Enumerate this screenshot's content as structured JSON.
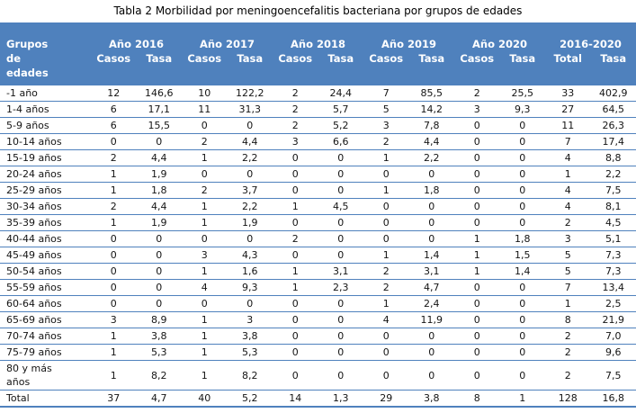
{
  "title": "Tabla 2 Morbilidad por meningoencefalitis bacteriana por grupos de edades",
  "colors": {
    "header_bg": "#4f81bd",
    "header_text": "#ffffff",
    "row_line": "#4f81bd",
    "body_text": "#141414"
  },
  "table": {
    "row_header": "Grupos de edades",
    "year_groups": [
      {
        "label": "Año 2016",
        "cols": [
          "Casos",
          "Tasa"
        ]
      },
      {
        "label": "Año 2017",
        "cols": [
          "Casos",
          "Tasa"
        ]
      },
      {
        "label": "Año 2018",
        "cols": [
          "Casos",
          "Tasa"
        ]
      },
      {
        "label": "Año 2019",
        "cols": [
          "Casos",
          "Tasa"
        ]
      },
      {
        "label": "Año 2020",
        "cols": [
          "Casos",
          "Tasa"
        ]
      },
      {
        "label": "2016-2020",
        "cols": [
          "Total",
          "Tasa"
        ]
      }
    ],
    "rows": [
      {
        "age": "-1 año",
        "values": [
          "12",
          "146,6",
          "10",
          "122,2",
          "2",
          "24,4",
          "7",
          "85,5",
          "2",
          "25,5",
          "33",
          "402,9"
        ]
      },
      {
        "age": "1-4 años",
        "values": [
          "6",
          "17,1",
          "11",
          "31,3",
          "2",
          "5,7",
          "5",
          "14,2",
          "3",
          "9,3",
          "27",
          "64,5"
        ]
      },
      {
        "age": "5-9 años",
        "values": [
          "6",
          "15,5",
          "0",
          "0",
          "2",
          "5,2",
          "3",
          "7,8",
          "0",
          "0",
          "11",
          "26,3"
        ]
      },
      {
        "age": "10-14 años",
        "values": [
          "0",
          "0",
          "2",
          "4,4",
          "3",
          "6,6",
          "2",
          "4,4",
          "0",
          "0",
          "7",
          "17,4"
        ]
      },
      {
        "age": "15-19 años",
        "values": [
          "2",
          "4,4",
          "1",
          "2,2",
          "0",
          "0",
          "1",
          "2,2",
          "0",
          "0",
          "4",
          "8,8"
        ]
      },
      {
        "age": "20-24 años",
        "values": [
          "1",
          "1,9",
          "0",
          "0",
          "0",
          "0",
          "0",
          "0",
          "0",
          "0",
          "1",
          "2,2"
        ]
      },
      {
        "age": "25-29 años",
        "values": [
          "1",
          "1,8",
          "2",
          "3,7",
          "0",
          "0",
          "1",
          "1,8",
          "0",
          "0",
          "4",
          "7,5"
        ]
      },
      {
        "age": "30-34 años",
        "values": [
          "2",
          "4,4",
          "1",
          "2,2",
          "1",
          "4,5",
          "0",
          "0",
          "0",
          "0",
          "4",
          "8,1"
        ]
      },
      {
        "age": "35-39 años",
        "values": [
          "1",
          "1,9",
          "1",
          "1,9",
          "0",
          "0",
          "0",
          "0",
          "0",
          "0",
          "2",
          "4,5"
        ]
      },
      {
        "age": "40-44 años",
        "values": [
          "0",
          "0",
          "0",
          "0",
          "2",
          "0",
          "0",
          "0",
          "1",
          "1,8",
          "3",
          "5,1"
        ]
      },
      {
        "age": "45-49 años",
        "values": [
          "0",
          "0",
          "3",
          "4,3",
          "0",
          "0",
          "1",
          "1,4",
          "1",
          "1,5",
          "5",
          "7,3"
        ]
      },
      {
        "age": "50-54 años",
        "values": [
          "0",
          "0",
          "1",
          "1,6",
          "1",
          "3,1",
          "2",
          "3,1",
          "1",
          "1,4",
          "5",
          "7,3"
        ]
      },
      {
        "age": "55-59 años",
        "values": [
          "0",
          "0",
          "4",
          "9,3",
          "1",
          "2,3",
          "2",
          "4,7",
          "0",
          "0",
          "7",
          "13,4"
        ]
      },
      {
        "age": "60-64 años",
        "values": [
          "0",
          "0",
          "0",
          "0",
          "0",
          "0",
          "1",
          "2,4",
          "0",
          "0",
          "1",
          "2,5"
        ]
      },
      {
        "age": "65-69 años",
        "values": [
          "3",
          "8,9",
          "1",
          "3",
          "0",
          "0",
          "4",
          "11,9",
          "0",
          "0",
          "8",
          "21,9"
        ]
      },
      {
        "age": "70-74 años",
        "values": [
          "1",
          "3,8",
          "1",
          "3,8",
          "0",
          "0",
          "0",
          "0",
          "0",
          "0",
          "2",
          "7,0"
        ]
      },
      {
        "age": "75-79 años",
        "values": [
          "1",
          "5,3",
          "1",
          "5,3",
          "0",
          "0",
          "0",
          "0",
          "0",
          "0",
          "2",
          "9,6"
        ]
      },
      {
        "age": "80 y más años",
        "values": [
          "1",
          "8,2",
          "1",
          "8,2",
          "0",
          "0",
          "0",
          "0",
          "0",
          "0",
          "2",
          "7,5"
        ]
      },
      {
        "age": "Total",
        "values": [
          "37",
          "4,7",
          "40",
          "5,2",
          "14",
          "1,3",
          "29",
          "3,8",
          "8",
          "1",
          "128",
          "16,8"
        ]
      }
    ]
  }
}
